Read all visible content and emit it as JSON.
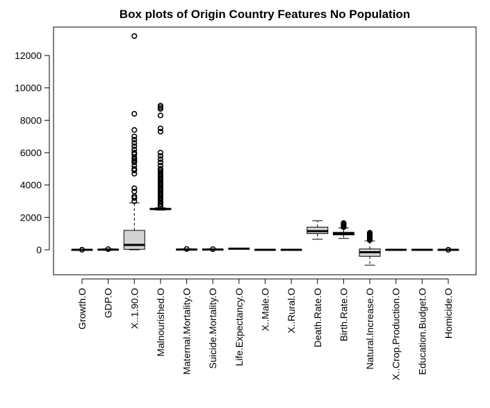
{
  "chart_data": {
    "type": "box",
    "title": "Box plots of Origin Country Features No Population",
    "xlabel": "",
    "ylabel": "",
    "ylim": [
      -1500,
      13500
    ],
    "y_ticks": [
      0,
      2000,
      4000,
      6000,
      8000,
      10000,
      12000
    ],
    "y_tick_labels": [
      "0",
      "2000",
      "4000",
      "6000",
      "8000",
      "10000",
      "12000"
    ],
    "grid": false,
    "box_fill": "#d3d3d3",
    "categories": [
      "Growth.O",
      "GDP.O",
      "X..1.90.O",
      "Malnourished.O",
      "Maternal.Mortality.O",
      "Suicide.Mortality.O",
      "Life.Expectancy.O",
      "X..Male.O",
      "X..Rural.O",
      "Death.Rate.O",
      "Birth.Rate.O",
      "Natural.Increase.O",
      "X..Crop.Production.O",
      "Education.Budget.O",
      "Homicide.O"
    ],
    "boxes": [
      {
        "min": -20,
        "q1": -8,
        "median": 0,
        "q3": 10,
        "max": 20,
        "outliers": [
          5
        ]
      },
      {
        "min": -10,
        "q1": 0,
        "median": 10,
        "q3": 25,
        "max": 60,
        "outliers": [
          40
        ]
      },
      {
        "min": 0,
        "q1": 30,
        "median": 300,
        "q3": 1200,
        "max": 2900,
        "outliers": [
          3000,
          3200,
          3300,
          3600,
          3800,
          4700,
          4900,
          5000,
          5200,
          5400,
          5500,
          5600,
          5700,
          5900,
          6000,
          6200,
          6400,
          6600,
          6800,
          7000,
          7400,
          8400,
          13200
        ]
      },
      {
        "min": 2450,
        "q1": 2500,
        "median": 2520,
        "q3": 2560,
        "max": 2600,
        "outliers": [
          2700,
          2800,
          2900,
          3000,
          3100,
          3200,
          3300,
          3400,
          3500,
          3600,
          3700,
          3800,
          3900,
          4000,
          4100,
          4200,
          4300,
          4400,
          4500,
          4600,
          4700,
          4800,
          4900,
          5000,
          5200,
          5400,
          5600,
          5800,
          6000,
          7300,
          7500,
          8300,
          8700,
          8800,
          8900
        ]
      },
      {
        "min": -10,
        "q1": 5,
        "median": 15,
        "q3": 30,
        "max": 60,
        "outliers": [
          50
        ]
      },
      {
        "min": -10,
        "q1": 5,
        "median": 15,
        "q3": 30,
        "max": 60,
        "outliers": [
          40
        ]
      },
      {
        "min": 55,
        "q1": 65,
        "median": 72,
        "q3": 78,
        "max": 85,
        "outliers": []
      },
      {
        "min": -5,
        "q1": 0,
        "median": 0,
        "q3": 5,
        "max": 10,
        "outliers": []
      },
      {
        "min": -5,
        "q1": 0,
        "median": 0,
        "q3": 5,
        "max": 10,
        "outliers": []
      },
      {
        "min": 650,
        "q1": 1000,
        "median": 1150,
        "q3": 1400,
        "max": 1800,
        "outliers": []
      },
      {
        "min": 700,
        "q1": 920,
        "median": 1000,
        "q3": 1080,
        "max": 1350,
        "outliers": [
          1400,
          1450,
          1500,
          1550,
          1600,
          1650
        ]
      },
      {
        "min": -950,
        "q1": -400,
        "median": -150,
        "q3": 50,
        "max": 550,
        "outliers": [
          600,
          650,
          700,
          750,
          800,
          850,
          900,
          950,
          1000,
          1050
        ]
      },
      {
        "min": -10,
        "q1": 0,
        "median": 0,
        "q3": 10,
        "max": 20,
        "outliers": []
      },
      {
        "min": -10,
        "q1": 0,
        "median": 0,
        "q3": 10,
        "max": 20,
        "outliers": []
      },
      {
        "min": -20,
        "q1": -5,
        "median": 0,
        "q3": 5,
        "max": 20,
        "outliers": [
          0
        ]
      }
    ]
  }
}
